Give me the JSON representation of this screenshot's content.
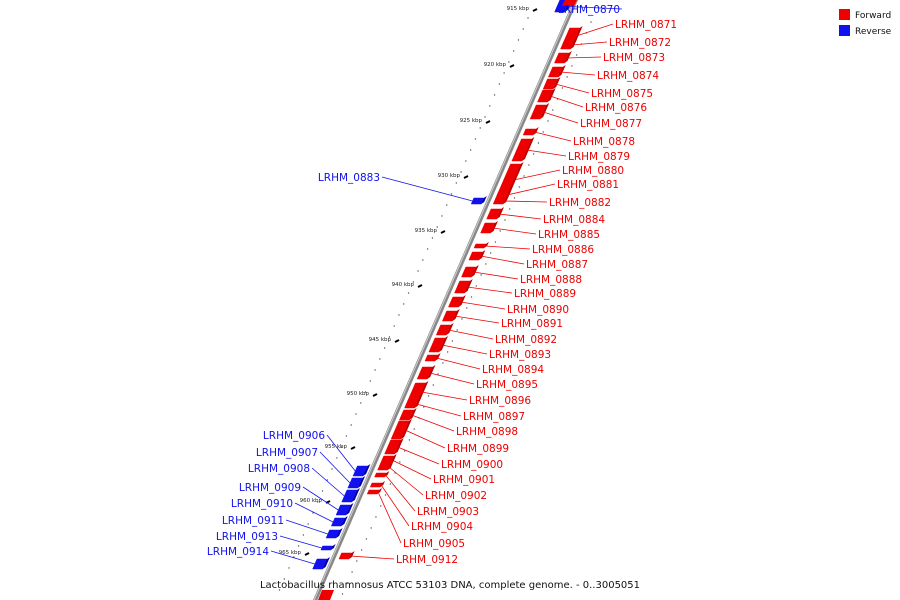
{
  "caption": "Lactobacillus rhamnosus ATCC 53103 DNA, complete genome. - 0..3005051",
  "legend": [
    {
      "label": "Forward",
      "color": "#ee0000"
    },
    {
      "label": "Reverse",
      "color": "#1111ee"
    }
  ],
  "colors": {
    "forward": "#ee0000",
    "reverse": "#1111ee",
    "axis": "#888888"
  },
  "ticks": [
    "915 kbp",
    "920 kbp",
    "925 kbp",
    "930 kbp",
    "935 kbp",
    "940 kbp",
    "945 kbp",
    "950 kbp",
    "955 kbp",
    "960 kbp",
    "965 kbp"
  ],
  "genes": [
    {
      "name": "LRHM_0870",
      "strand": "reverse"
    },
    {
      "name": "LRHM_0871",
      "strand": "forward"
    },
    {
      "name": "LRHM_0872",
      "strand": "forward"
    },
    {
      "name": "LRHM_0873",
      "strand": "forward"
    },
    {
      "name": "LRHM_0874",
      "strand": "forward"
    },
    {
      "name": "LRHM_0875",
      "strand": "forward"
    },
    {
      "name": "LRHM_0876",
      "strand": "forward"
    },
    {
      "name": "LRHM_0877",
      "strand": "forward"
    },
    {
      "name": "LRHM_0878",
      "strand": "forward"
    },
    {
      "name": "LRHM_0879",
      "strand": "forward"
    },
    {
      "name": "LRHM_0880",
      "strand": "forward"
    },
    {
      "name": "LRHM_0881",
      "strand": "forward"
    },
    {
      "name": "LRHM_0882",
      "strand": "forward"
    },
    {
      "name": "LRHM_0883",
      "strand": "reverse"
    },
    {
      "name": "LRHM_0884",
      "strand": "forward"
    },
    {
      "name": "LRHM_0885",
      "strand": "forward"
    },
    {
      "name": "LRHM_0886",
      "strand": "forward"
    },
    {
      "name": "LRHM_0887",
      "strand": "forward"
    },
    {
      "name": "LRHM_0888",
      "strand": "forward"
    },
    {
      "name": "LRHM_0889",
      "strand": "forward"
    },
    {
      "name": "LRHM_0890",
      "strand": "forward"
    },
    {
      "name": "LRHM_0891",
      "strand": "forward"
    },
    {
      "name": "LRHM_0892",
      "strand": "forward"
    },
    {
      "name": "LRHM_0893",
      "strand": "forward"
    },
    {
      "name": "LRHM_0894",
      "strand": "forward"
    },
    {
      "name": "LRHM_0895",
      "strand": "forward"
    },
    {
      "name": "LRHM_0896",
      "strand": "forward"
    },
    {
      "name": "LRHM_0897",
      "strand": "forward"
    },
    {
      "name": "LRHM_0898",
      "strand": "forward"
    },
    {
      "name": "LRHM_0899",
      "strand": "forward"
    },
    {
      "name": "LRHM_0900",
      "strand": "forward"
    },
    {
      "name": "LRHM_0901",
      "strand": "forward"
    },
    {
      "name": "LRHM_0902",
      "strand": "forward"
    },
    {
      "name": "LRHM_0903",
      "strand": "forward"
    },
    {
      "name": "LRHM_0904",
      "strand": "forward"
    },
    {
      "name": "LRHM_0905",
      "strand": "forward"
    },
    {
      "name": "LRHM_0906",
      "strand": "reverse"
    },
    {
      "name": "LRHM_0907",
      "strand": "reverse"
    },
    {
      "name": "LRHM_0908",
      "strand": "reverse"
    },
    {
      "name": "LRHM_0909",
      "strand": "reverse"
    },
    {
      "name": "LRHM_0910",
      "strand": "reverse"
    },
    {
      "name": "LRHM_0911",
      "strand": "reverse"
    },
    {
      "name": "LRHM_0912",
      "strand": "forward"
    },
    {
      "name": "LRHM_0913",
      "strand": "reverse"
    },
    {
      "name": "LRHM_0914",
      "strand": "reverse"
    }
  ]
}
